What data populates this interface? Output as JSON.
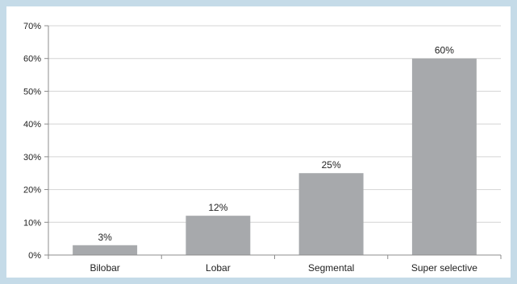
{
  "chart_data": {
    "type": "bar",
    "categories": [
      "Bilobar",
      "Lobar",
      "Segmental",
      "Super selective"
    ],
    "values": [
      3,
      12,
      25,
      60
    ],
    "data_labels": [
      "3%",
      "12%",
      "25%",
      "60%"
    ],
    "title": "",
    "xlabel": "",
    "ylabel": "",
    "ylim": [
      0,
      70
    ],
    "y_ticks": [
      0,
      10,
      20,
      30,
      40,
      50,
      60,
      70
    ],
    "y_tick_labels": [
      "0%",
      "10%",
      "20%",
      "30%",
      "40%",
      "50%",
      "60%",
      "70%"
    ],
    "grid": true,
    "legend": "none",
    "colors": {
      "bar": "#a7a9ac",
      "grid": "#d4d4d4",
      "axis": "#8c8c8c",
      "background": "#ffffff",
      "border": "#c5dbe8"
    }
  }
}
